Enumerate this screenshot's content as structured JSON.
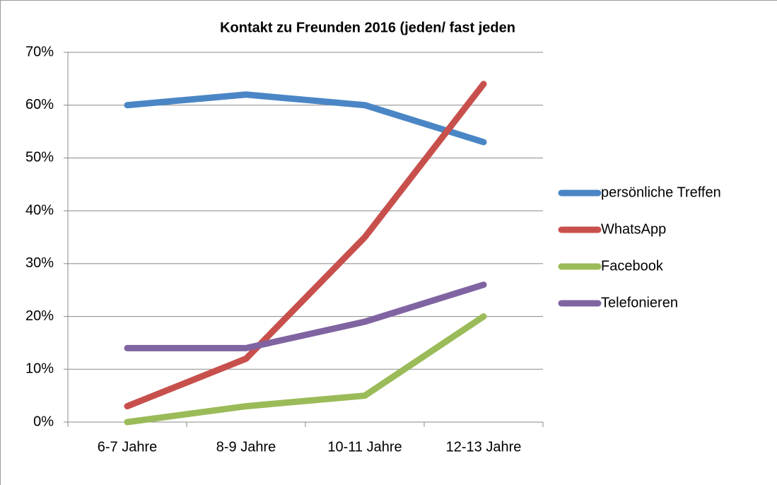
{
  "chart_data": {
    "type": "line",
    "title": "Kontakt zu Freunden 2016 (jeden/ fast jeden",
    "categories": [
      "6-7 Jahre",
      "8-9 Jahre",
      "10-11 Jahre",
      "12-13 Jahre"
    ],
    "series": [
      {
        "name": "persönliche Treffen",
        "color": "#4a86c5",
        "values": [
          60,
          62,
          60,
          53
        ]
      },
      {
        "name": "WhatsApp",
        "color": "#c8504c",
        "values": [
          3,
          12,
          35,
          64
        ]
      },
      {
        "name": "Facebook",
        "color": "#9bbb59",
        "values": [
          0,
          3,
          5,
          20
        ]
      },
      {
        "name": "Telefonieren",
        "color": "#8064a2",
        "values": [
          14,
          14,
          19,
          26
        ]
      }
    ],
    "ylim": [
      0,
      70
    ],
    "yticks": [
      {
        "value": 0,
        "label": "0%"
      },
      {
        "value": 10,
        "label": "10%"
      },
      {
        "value": 20,
        "label": "20%"
      },
      {
        "value": 30,
        "label": "30%"
      },
      {
        "value": 40,
        "label": "40%"
      },
      {
        "value": 50,
        "label": "50%"
      },
      {
        "value": 60,
        "label": "60%"
      },
      {
        "value": 70,
        "label": "70%"
      }
    ],
    "grid": true,
    "legend": "right"
  }
}
